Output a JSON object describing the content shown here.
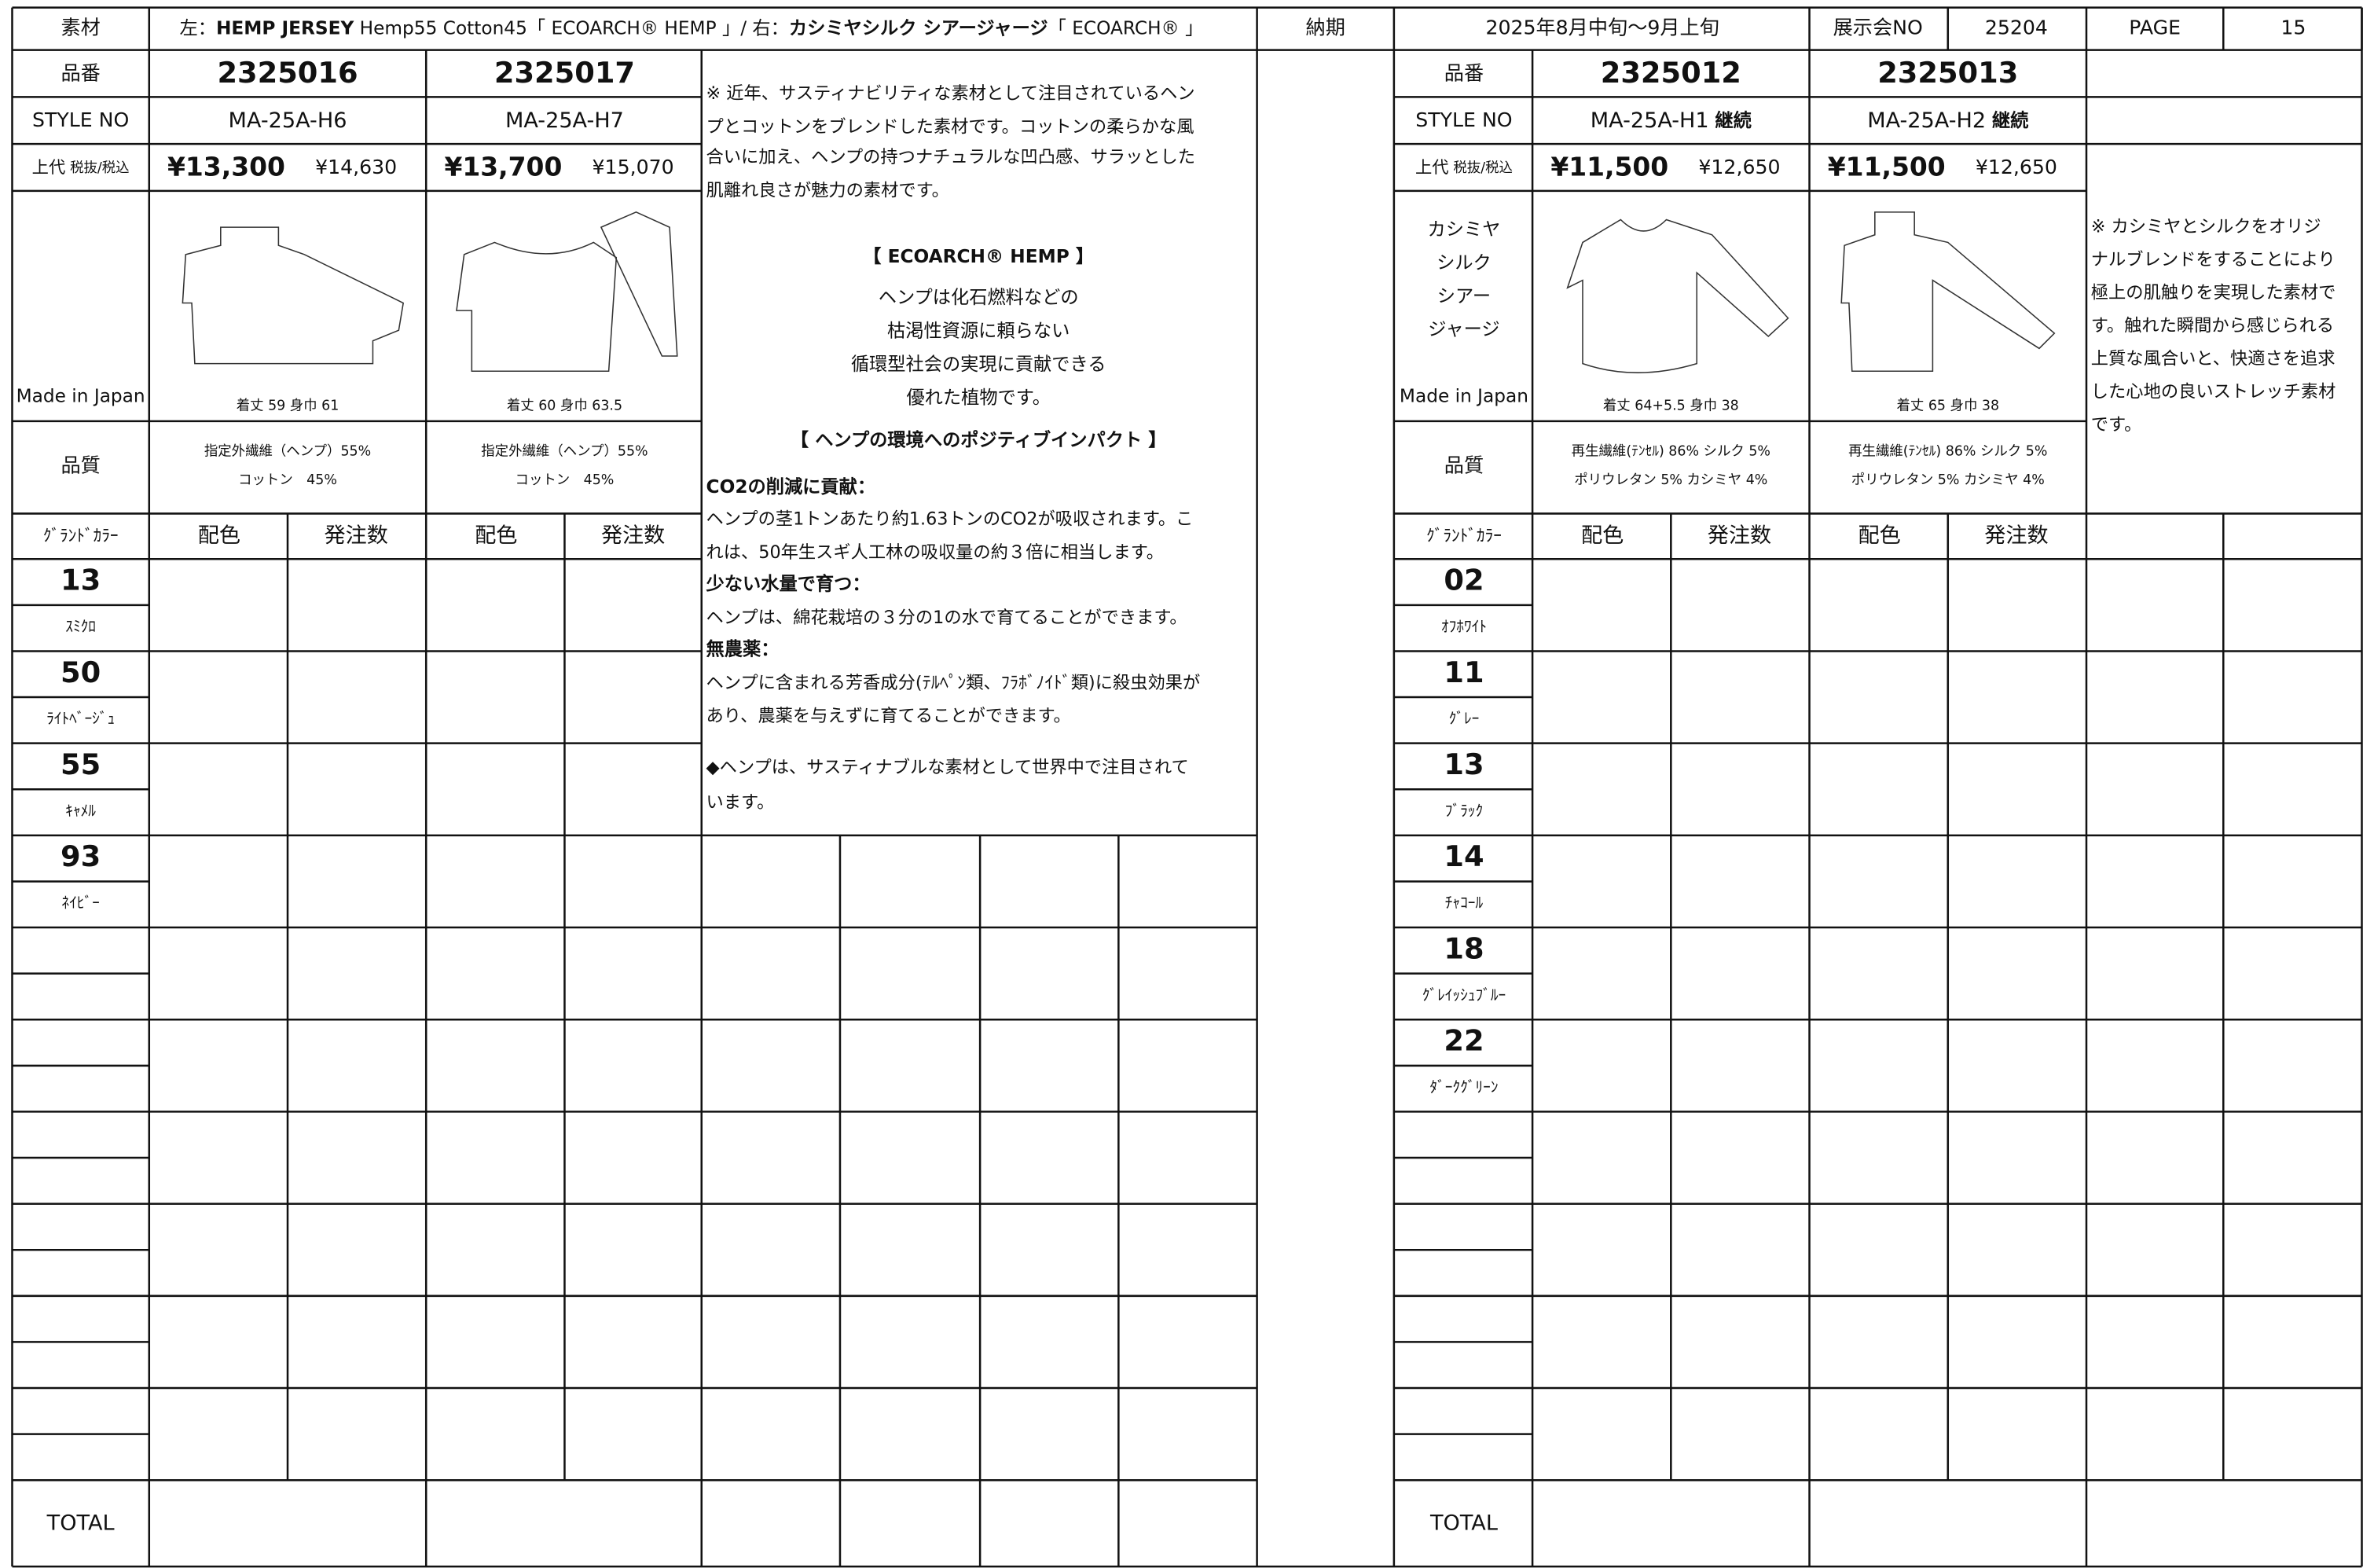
{
  "header": {
    "material_label": "素材",
    "material": [
      "左：",
      "HEMP JERSEY",
      " Hemp55 Cotton45「 ECOARCH® HEMP 」/ 右：",
      "カシミヤシルク シアージャージ",
      "「 ECOARCH® 」"
    ],
    "delivery_label": "納期",
    "delivery": "2025年8月中旬〜9月上旬",
    "exhibition_label": "展示会NO",
    "exhibition_no": "25204",
    "page_label": "PAGE",
    "page": "15"
  },
  "left": {
    "labels": {
      "product_no": "品番",
      "style_no": "STYLE NO",
      "price": [
        "上代",
        "税抜/税込"
      ],
      "origin": "Made in Japan",
      "quality": "品質",
      "ground_color": "ｸﾞﾗﾝﾄﾞｶﾗｰ",
      "scheme": "配色",
      "order_qty": "発注数",
      "total": "TOTAL"
    },
    "products": [
      {
        "product_no": "2325016",
        "style_no": "MA-25A-H6",
        "price": "¥13,300",
        "price_tax": "¥14,630",
        "measurements": "着丈 59  身巾 61",
        "quality": [
          "指定外繊維（ヘンプ）55%",
          "コットン　45%"
        ]
      },
      {
        "product_no": "2325017",
        "style_no": "MA-25A-H7",
        "price": "¥13,700",
        "price_tax": "¥15,070",
        "measurements": "着丈 60  身巾 63.5",
        "quality": [
          "指定外繊維（ヘンプ）55%",
          "コットン　45%"
        ]
      }
    ],
    "colors": [
      {
        "code": "13",
        "name": "ｽﾐｸﾛ"
      },
      {
        "code": "50",
        "name": "ﾗｲﾄﾍﾞｰｼﾞｭ"
      },
      {
        "code": "55",
        "name": "ｷｬﾒﾙ"
      },
      {
        "code": "93",
        "name": "ﾈｲﾋﾞｰ"
      }
    ]
  },
  "description": {
    "intro": [
      "※ 近年、サスティナビリティな素材として注目されているヘン",
      "プとコットンをブレンドした素材です。コットンの柔らかな風",
      "合いに加え、ヘンプの持つナチュラルな凹凸感、サラッとした",
      "肌離れ良さが魅力の素材です。"
    ],
    "ecoarch_title": "【 ECOARCH® HEMP 】",
    "ecoarch": [
      "ヘンプは化石燃料などの",
      "枯渇性資源に頼らない",
      "循環型社会の実現に貢献できる",
      "優れた植物です。"
    ],
    "impact_title": "【 ヘンプの環境へのポジティブインパクト 】",
    "co2_title": "CO2の削減に貢献：",
    "co2": [
      "ヘンプの茎1トンあたり約1.63トンのCO2が吸収されます。こ",
      "れは、50年生スギ人工林の吸収量の約３倍に相当します。"
    ],
    "water_title": "少ない水量で育つ：",
    "water": [
      "ヘンプは、綿花栽培の３分の1の水で育てることができます。"
    ],
    "pesticide_title": "無農薬：",
    "pesticide": [
      "ヘンプに含まれる芳香成分(ﾃﾙﾍﾟﾝ類、ﾌﾗﾎﾞﾉｲﾄﾞ類)に殺虫効果が",
      "あり、農薬を与えずに育てることができます。"
    ],
    "closing": [
      "◆ヘンプは、サスティナブルな素材として世界中で注目されて",
      "います。"
    ]
  },
  "right": {
    "labels": {
      "product_no": "品番",
      "style_no": "STYLE NO",
      "price": [
        "上代",
        "税抜/税込"
      ],
      "fabric": [
        "カシミヤ",
        "シルク",
        "シアー",
        "ジャージ"
      ],
      "origin": "Made in Japan",
      "quality": "品質",
      "ground_color": "ｸﾞﾗﾝﾄﾞｶﾗｰ",
      "scheme": "配色",
      "order_qty": "発注数",
      "total": "TOTAL"
    },
    "products": [
      {
        "product_no": "2325012",
        "style_no": "MA-25A-H1",
        "status": "継続",
        "price": "¥11,500",
        "price_tax": "¥12,650",
        "measurements": "着丈 64+5.5  身巾 38",
        "quality": [
          "再生繊維(ﾃﾝｾﾙ) 86%  シルク 5%",
          "ポリウレタン 5%  カシミヤ 4%"
        ]
      },
      {
        "product_no": "2325013",
        "style_no": "MA-25A-H2",
        "status": "継続",
        "price": "¥11,500",
        "price_tax": "¥12,650",
        "measurements": "着丈 65  身巾 38",
        "quality": [
          "再生繊維(ﾃﾝｾﾙ) 86%  シルク 5%",
          "ポリウレタン 5%  カシミヤ 4%"
        ]
      }
    ],
    "colors": [
      {
        "code": "02",
        "name": "ｵﾌﾎﾜｲﾄ"
      },
      {
        "code": "11",
        "name": "ｸﾞﾚｰ"
      },
      {
        "code": "13",
        "name": "ﾌﾞﾗｯｸ"
      },
      {
        "code": "14",
        "name": "ﾁｬｺｰﾙ"
      },
      {
        "code": "18",
        "name": "ｸﾞﾚｲｯｼｭﾌﾞﾙｰ"
      },
      {
        "code": "22",
        "name": "ﾀﾞｰｸｸﾞﾘｰﾝ"
      }
    ],
    "note": [
      "※ カシミヤとシルクをオリジ",
      "ナルブレンドをすることにより",
      "極上の肌触りを実現した素材で",
      "す。触れた瞬間から感じられる",
      "上質な風合いと、快適さを追求",
      "した心地の良いストレッチ素材",
      "です。"
    ]
  }
}
